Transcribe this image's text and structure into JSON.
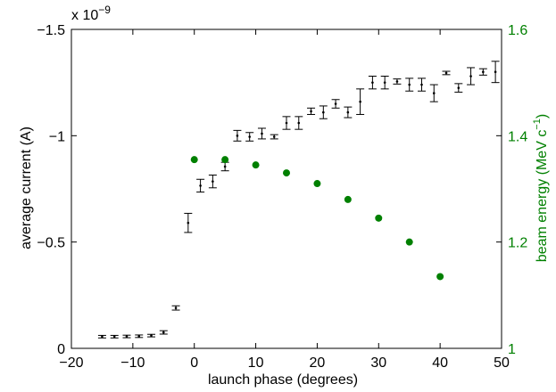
{
  "chart_data": {
    "type": "scatter",
    "xlabel": "launch phase (degrees)",
    "ylabel_left": "average current (A)",
    "ylabel_right_prefix": "beam energy (MeV c",
    "ylabel_right_sup": "−1",
    "ylabel_right_suffix": ")",
    "exponent_prefix": "x 10",
    "exponent_power": "−9",
    "x_axis": {
      "min": -20,
      "max": 50,
      "ticks": [
        -20,
        -10,
        0,
        10,
        20,
        30,
        40,
        50
      ],
      "tick_labels": [
        "−20",
        "−10",
        "0",
        "10",
        "20",
        "30",
        "40",
        "50"
      ]
    },
    "y_left_axis": {
      "min": 0,
      "max": -1.5,
      "reversed": true,
      "ticks": [
        0,
        -0.5,
        -1,
        -1.5
      ],
      "tick_labels": [
        "0",
        "−0.5",
        "−1",
        "−1.5"
      ],
      "color": "#000000"
    },
    "y_right_axis": {
      "min": 1.0,
      "max": 1.6,
      "ticks": [
        1.0,
        1.2,
        1.4,
        1.6
      ],
      "tick_labels": [
        "1",
        "1.2",
        "1.4",
        "1.6"
      ],
      "color": "#008000"
    },
    "series": [
      {
        "axis": "left",
        "marker": "point-with-errorbars",
        "color": "#000000",
        "x": [
          -15,
          -13,
          -11,
          -9,
          -7,
          -5,
          -3,
          -1,
          1,
          3,
          5,
          7,
          9,
          11,
          13,
          15,
          17,
          19,
          21,
          23,
          25,
          27,
          29,
          31,
          33,
          35,
          37,
          39,
          41,
          43,
          45,
          47,
          49
        ],
        "y": [
          -0.055,
          -0.055,
          -0.056,
          -0.057,
          -0.06,
          -0.075,
          -0.19,
          -0.59,
          -0.765,
          -0.785,
          -0.855,
          -1.0,
          -0.995,
          -1.01,
          -0.995,
          -1.06,
          -1.06,
          -1.115,
          -1.11,
          -1.15,
          -1.11,
          -1.16,
          -1.25,
          -1.25,
          -1.255,
          -1.24,
          -1.24,
          -1.2,
          -1.295,
          -1.225,
          -1.28,
          -1.3,
          -1.3
        ],
        "err": [
          0.006,
          0.006,
          0.006,
          0.006,
          0.006,
          0.008,
          0.01,
          0.045,
          0.03,
          0.03,
          0.02,
          0.025,
          0.02,
          0.025,
          0.01,
          0.03,
          0.03,
          0.015,
          0.03,
          0.02,
          0.025,
          0.06,
          0.03,
          0.03,
          0.012,
          0.03,
          0.03,
          0.04,
          0.008,
          0.02,
          0.04,
          0.015,
          0.05
        ]
      },
      {
        "axis": "right",
        "marker": "filled-circle",
        "color": "#008000",
        "x": [
          0,
          5,
          10,
          15,
          20,
          25,
          30,
          35,
          40
        ],
        "y": [
          1.355,
          1.355,
          1.345,
          1.33,
          1.31,
          1.28,
          1.245,
          1.2,
          1.135
        ]
      }
    ]
  }
}
